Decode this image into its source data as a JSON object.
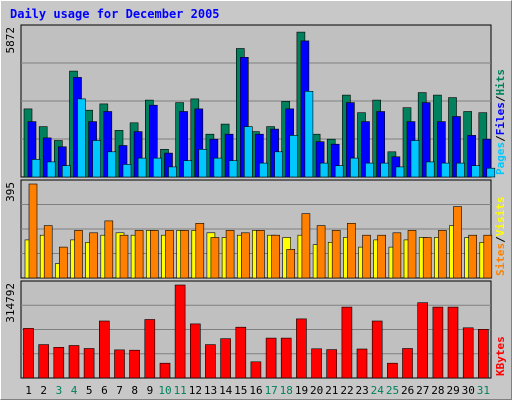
{
  "chart_data": [
    {
      "type": "bar",
      "title": "Daily usage for December 2005",
      "ymax_label": "5872",
      "ylim": [
        0,
        5872
      ],
      "grid": true,
      "categories": [
        "1",
        "2",
        "3",
        "4",
        "5",
        "6",
        "7",
        "8",
        "9",
        "10",
        "11",
        "12",
        "13",
        "14",
        "15",
        "16",
        "17",
        "18",
        "19",
        "20",
        "21",
        "22",
        "23",
        "24",
        "25",
        "26",
        "27",
        "28",
        "29",
        "30",
        "31"
      ],
      "weekend_days": [
        "3",
        "4",
        "10",
        "11",
        "17",
        "18",
        "24",
        "25",
        "31"
      ],
      "legend": [
        "Pages",
        "/",
        "Files",
        "/",
        "Hits"
      ],
      "legend_colors": {
        "Pages": "#00c8ff",
        "Files": "#0000ff",
        "Hits": "#00805c"
      },
      "series": [
        {
          "name": "Hits",
          "color": "#00805c",
          "values": [
            2700,
            2000,
            1450,
            4200,
            2650,
            2900,
            1850,
            2150,
            3050,
            1100,
            2950,
            3100,
            1700,
            2100,
            5100,
            1800,
            2000,
            3000,
            5750,
            1700,
            1500,
            3250,
            2550,
            3050,
            1000,
            2750,
            3350,
            3250,
            3150,
            2600,
            2550
          ]
        },
        {
          "name": "Files",
          "color": "#0000ff",
          "values": [
            2200,
            1550,
            1200,
            3950,
            2200,
            2600,
            1250,
            1800,
            2850,
            950,
            2600,
            2700,
            1500,
            1700,
            4750,
            1700,
            1900,
            2700,
            5400,
            1400,
            1300,
            2950,
            2200,
            2600,
            800,
            2200,
            2950,
            2200,
            2400,
            1650,
            1500
          ]
        },
        {
          "name": "Pages",
          "color": "#00c8ff",
          "values": [
            700,
            600,
            450,
            3100,
            1450,
            1000,
            500,
            750,
            750,
            400,
            650,
            1100,
            750,
            650,
            2000,
            550,
            1000,
            1650,
            3400,
            550,
            450,
            750,
            550,
            550,
            400,
            1450,
            600,
            550,
            550,
            450,
            350
          ]
        }
      ]
    },
    {
      "type": "bar",
      "ymax_label": "395",
      "ylim": [
        0,
        395
      ],
      "grid": true,
      "categories": [
        "1",
        "2",
        "3",
        "4",
        "5",
        "6",
        "7",
        "8",
        "9",
        "10",
        "11",
        "12",
        "13",
        "14",
        "15",
        "16",
        "17",
        "18",
        "19",
        "20",
        "21",
        "22",
        "23",
        "24",
        "25",
        "26",
        "27",
        "28",
        "29",
        "30",
        "31"
      ],
      "legend": [
        "Sites",
        "/",
        "Visits"
      ],
      "legend_colors": {
        "Sites": "#ff8000",
        "Visits": "#ffff00"
      },
      "series": [
        {
          "name": "Visits",
          "color": "#ffff00",
          "values": [
            160,
            180,
            60,
            160,
            150,
            180,
            190,
            180,
            200,
            180,
            200,
            200,
            190,
            170,
            180,
            200,
            180,
            170,
            180,
            140,
            150,
            170,
            130,
            160,
            130,
            160,
            170,
            170,
            220,
            170,
            150
          ]
        },
        {
          "name": "Sites",
          "color": "#ff8000",
          "values": [
            395,
            220,
            130,
            200,
            190,
            240,
            180,
            200,
            200,
            200,
            200,
            230,
            170,
            200,
            190,
            200,
            180,
            120,
            270,
            220,
            200,
            230,
            180,
            180,
            190,
            200,
            170,
            200,
            300,
            180,
            180
          ]
        }
      ]
    },
    {
      "type": "bar",
      "ymax_label": "314792",
      "ylim": [
        0,
        314792
      ],
      "grid": true,
      "categories": [
        "1",
        "2",
        "3",
        "4",
        "5",
        "6",
        "7",
        "8",
        "9",
        "10",
        "11",
        "12",
        "13",
        "14",
        "15",
        "16",
        "17",
        "18",
        "19",
        "20",
        "21",
        "22",
        "23",
        "24",
        "25",
        "26",
        "27",
        "28",
        "29",
        "30",
        "31"
      ],
      "legend": [
        "KBytes"
      ],
      "legend_colors": {
        "KBytes": "#ff0000"
      },
      "series": [
        {
          "name": "KBytes",
          "color": "#ff0000",
          "values": [
            168000,
            113000,
            104000,
            110000,
            100000,
            193000,
            95000,
            94000,
            198000,
            50000,
            314792,
            183000,
            113000,
            133000,
            172000,
            55000,
            135000,
            135000,
            200000,
            99000,
            96000,
            240000,
            98000,
            193000,
            50000,
            100000,
            255000,
            240000,
            240000,
            170000,
            165000
          ]
        }
      ]
    }
  ]
}
